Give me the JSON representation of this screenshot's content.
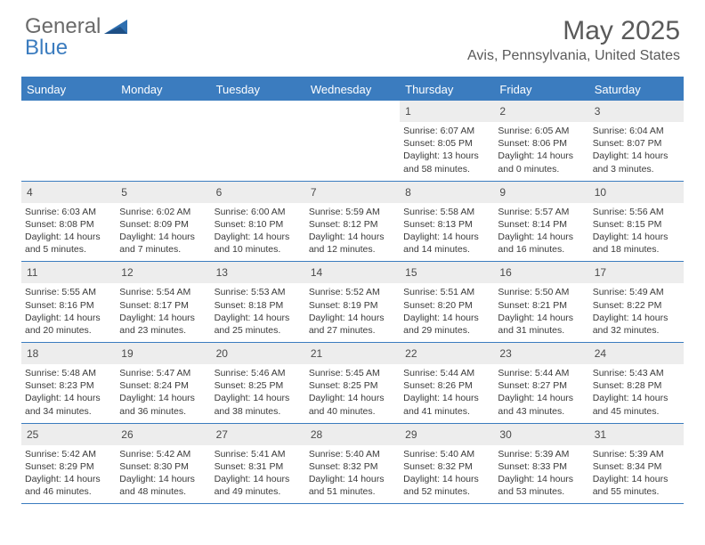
{
  "logo": {
    "text1": "General",
    "text2": "Blue"
  },
  "title": "May 2025",
  "location": "Avis, Pennsylvania, United States",
  "colors": {
    "accent": "#3b7cbf",
    "headerText": "#ffffff",
    "bodyText": "#3a3a3a",
    "mutedText": "#5a5a5a",
    "dayNumBg": "#ededed",
    "background": "#ffffff"
  },
  "dayHeaders": [
    "Sunday",
    "Monday",
    "Tuesday",
    "Wednesday",
    "Thursday",
    "Friday",
    "Saturday"
  ],
  "weeks": [
    [
      {
        "empty": true
      },
      {
        "empty": true
      },
      {
        "empty": true
      },
      {
        "empty": true
      },
      {
        "num": "1",
        "sunrise": "Sunrise: 6:07 AM",
        "sunset": "Sunset: 8:05 PM",
        "daylight1": "Daylight: 13 hours",
        "daylight2": "and 58 minutes."
      },
      {
        "num": "2",
        "sunrise": "Sunrise: 6:05 AM",
        "sunset": "Sunset: 8:06 PM",
        "daylight1": "Daylight: 14 hours",
        "daylight2": "and 0 minutes."
      },
      {
        "num": "3",
        "sunrise": "Sunrise: 6:04 AM",
        "sunset": "Sunset: 8:07 PM",
        "daylight1": "Daylight: 14 hours",
        "daylight2": "and 3 minutes."
      }
    ],
    [
      {
        "num": "4",
        "sunrise": "Sunrise: 6:03 AM",
        "sunset": "Sunset: 8:08 PM",
        "daylight1": "Daylight: 14 hours",
        "daylight2": "and 5 minutes."
      },
      {
        "num": "5",
        "sunrise": "Sunrise: 6:02 AM",
        "sunset": "Sunset: 8:09 PM",
        "daylight1": "Daylight: 14 hours",
        "daylight2": "and 7 minutes."
      },
      {
        "num": "6",
        "sunrise": "Sunrise: 6:00 AM",
        "sunset": "Sunset: 8:10 PM",
        "daylight1": "Daylight: 14 hours",
        "daylight2": "and 10 minutes."
      },
      {
        "num": "7",
        "sunrise": "Sunrise: 5:59 AM",
        "sunset": "Sunset: 8:12 PM",
        "daylight1": "Daylight: 14 hours",
        "daylight2": "and 12 minutes."
      },
      {
        "num": "8",
        "sunrise": "Sunrise: 5:58 AM",
        "sunset": "Sunset: 8:13 PM",
        "daylight1": "Daylight: 14 hours",
        "daylight2": "and 14 minutes."
      },
      {
        "num": "9",
        "sunrise": "Sunrise: 5:57 AM",
        "sunset": "Sunset: 8:14 PM",
        "daylight1": "Daylight: 14 hours",
        "daylight2": "and 16 minutes."
      },
      {
        "num": "10",
        "sunrise": "Sunrise: 5:56 AM",
        "sunset": "Sunset: 8:15 PM",
        "daylight1": "Daylight: 14 hours",
        "daylight2": "and 18 minutes."
      }
    ],
    [
      {
        "num": "11",
        "sunrise": "Sunrise: 5:55 AM",
        "sunset": "Sunset: 8:16 PM",
        "daylight1": "Daylight: 14 hours",
        "daylight2": "and 20 minutes."
      },
      {
        "num": "12",
        "sunrise": "Sunrise: 5:54 AM",
        "sunset": "Sunset: 8:17 PM",
        "daylight1": "Daylight: 14 hours",
        "daylight2": "and 23 minutes."
      },
      {
        "num": "13",
        "sunrise": "Sunrise: 5:53 AM",
        "sunset": "Sunset: 8:18 PM",
        "daylight1": "Daylight: 14 hours",
        "daylight2": "and 25 minutes."
      },
      {
        "num": "14",
        "sunrise": "Sunrise: 5:52 AM",
        "sunset": "Sunset: 8:19 PM",
        "daylight1": "Daylight: 14 hours",
        "daylight2": "and 27 minutes."
      },
      {
        "num": "15",
        "sunrise": "Sunrise: 5:51 AM",
        "sunset": "Sunset: 8:20 PM",
        "daylight1": "Daylight: 14 hours",
        "daylight2": "and 29 minutes."
      },
      {
        "num": "16",
        "sunrise": "Sunrise: 5:50 AM",
        "sunset": "Sunset: 8:21 PM",
        "daylight1": "Daylight: 14 hours",
        "daylight2": "and 31 minutes."
      },
      {
        "num": "17",
        "sunrise": "Sunrise: 5:49 AM",
        "sunset": "Sunset: 8:22 PM",
        "daylight1": "Daylight: 14 hours",
        "daylight2": "and 32 minutes."
      }
    ],
    [
      {
        "num": "18",
        "sunrise": "Sunrise: 5:48 AM",
        "sunset": "Sunset: 8:23 PM",
        "daylight1": "Daylight: 14 hours",
        "daylight2": "and 34 minutes."
      },
      {
        "num": "19",
        "sunrise": "Sunrise: 5:47 AM",
        "sunset": "Sunset: 8:24 PM",
        "daylight1": "Daylight: 14 hours",
        "daylight2": "and 36 minutes."
      },
      {
        "num": "20",
        "sunrise": "Sunrise: 5:46 AM",
        "sunset": "Sunset: 8:25 PM",
        "daylight1": "Daylight: 14 hours",
        "daylight2": "and 38 minutes."
      },
      {
        "num": "21",
        "sunrise": "Sunrise: 5:45 AM",
        "sunset": "Sunset: 8:25 PM",
        "daylight1": "Daylight: 14 hours",
        "daylight2": "and 40 minutes."
      },
      {
        "num": "22",
        "sunrise": "Sunrise: 5:44 AM",
        "sunset": "Sunset: 8:26 PM",
        "daylight1": "Daylight: 14 hours",
        "daylight2": "and 41 minutes."
      },
      {
        "num": "23",
        "sunrise": "Sunrise: 5:44 AM",
        "sunset": "Sunset: 8:27 PM",
        "daylight1": "Daylight: 14 hours",
        "daylight2": "and 43 minutes."
      },
      {
        "num": "24",
        "sunrise": "Sunrise: 5:43 AM",
        "sunset": "Sunset: 8:28 PM",
        "daylight1": "Daylight: 14 hours",
        "daylight2": "and 45 minutes."
      }
    ],
    [
      {
        "num": "25",
        "sunrise": "Sunrise: 5:42 AM",
        "sunset": "Sunset: 8:29 PM",
        "daylight1": "Daylight: 14 hours",
        "daylight2": "and 46 minutes."
      },
      {
        "num": "26",
        "sunrise": "Sunrise: 5:42 AM",
        "sunset": "Sunset: 8:30 PM",
        "daylight1": "Daylight: 14 hours",
        "daylight2": "and 48 minutes."
      },
      {
        "num": "27",
        "sunrise": "Sunrise: 5:41 AM",
        "sunset": "Sunset: 8:31 PM",
        "daylight1": "Daylight: 14 hours",
        "daylight2": "and 49 minutes."
      },
      {
        "num": "28",
        "sunrise": "Sunrise: 5:40 AM",
        "sunset": "Sunset: 8:32 PM",
        "daylight1": "Daylight: 14 hours",
        "daylight2": "and 51 minutes."
      },
      {
        "num": "29",
        "sunrise": "Sunrise: 5:40 AM",
        "sunset": "Sunset: 8:32 PM",
        "daylight1": "Daylight: 14 hours",
        "daylight2": "and 52 minutes."
      },
      {
        "num": "30",
        "sunrise": "Sunrise: 5:39 AM",
        "sunset": "Sunset: 8:33 PM",
        "daylight1": "Daylight: 14 hours",
        "daylight2": "and 53 minutes."
      },
      {
        "num": "31",
        "sunrise": "Sunrise: 5:39 AM",
        "sunset": "Sunset: 8:34 PM",
        "daylight1": "Daylight: 14 hours",
        "daylight2": "and 55 minutes."
      }
    ]
  ]
}
